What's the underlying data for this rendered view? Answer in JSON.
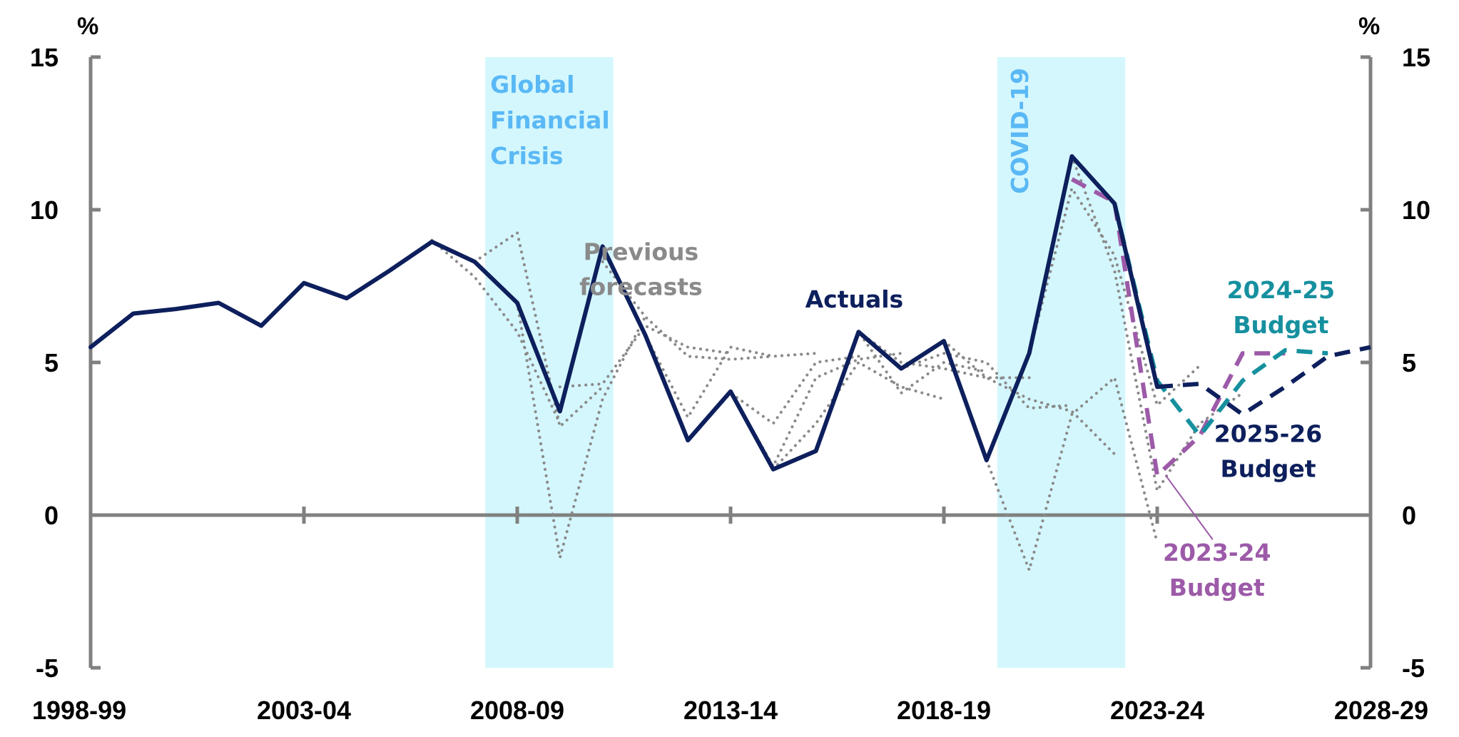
{
  "chart_data": {
    "type": "line",
    "left_unit": "%",
    "right_unit": "%",
    "ylim": [
      -5,
      15
    ],
    "yticks": [
      "15",
      "10",
      "5",
      "0",
      "-5"
    ],
    "xlim": [
      1998,
      2028
    ],
    "xticks": [
      {
        "label": "1998-99",
        "x": 1998
      },
      {
        "label": "2003-04",
        "x": 2003
      },
      {
        "label": "2008-09",
        "x": 2008
      },
      {
        "label": "2013-14",
        "x": 2013
      },
      {
        "label": "2018-19",
        "x": 2018
      },
      {
        "label": "2023-24",
        "x": 2023
      },
      {
        "label": "2028-29",
        "x": 2028
      }
    ],
    "shaded_periods": [
      {
        "label": "Global Financial Crisis",
        "lines": [
          "Global",
          "Financial",
          "Crisis"
        ],
        "x0": 2007.25,
        "x1": 2010.25,
        "color": "#d4f7fd",
        "label_color": "#5ab8f5"
      },
      {
        "label": "COVID-19",
        "lines": [
          "COVID-19"
        ],
        "x0": 2019.25,
        "x1": 2022.25,
        "color": "#d4f7fd",
        "label_color": "#5ab8f5",
        "vertical": true
      }
    ],
    "series": [
      {
        "name": "Actuals",
        "color": "#0d1f5c",
        "style": "solid",
        "x": [
          1998,
          1999,
          2000,
          2001,
          2002,
          2003,
          2004,
          2005,
          2006,
          2007,
          2008,
          2009,
          2010,
          2011,
          2012,
          2013,
          2014,
          2015,
          2016,
          2017,
          2018,
          2019,
          2020,
          2021,
          2022,
          2023
        ],
        "y": [
          5.5,
          6.6,
          6.75,
          6.95,
          6.2,
          7.6,
          7.1,
          8.0,
          8.95,
          8.3,
          6.95,
          3.4,
          8.8,
          5.9,
          2.45,
          4.05,
          1.5,
          2.1,
          6.0,
          4.8,
          5.7,
          1.8,
          5.3,
          11.75,
          10.2,
          4.2
        ]
      },
      {
        "name": "2023-24 Budget",
        "color": "#9c5aa8",
        "style": "dashed",
        "x": [
          2021,
          2022,
          2023,
          2024,
          2025,
          2026
        ],
        "y": [
          11.0,
          10.25,
          1.3,
          2.6,
          5.3,
          5.3
        ]
      },
      {
        "name": "2024-25 Budget",
        "color": "#16909f",
        "style": "dashed",
        "x": [
          2022,
          2023,
          2024,
          2025,
          2026,
          2027
        ],
        "y": [
          10.2,
          4.4,
          2.6,
          4.4,
          5.4,
          5.3
        ]
      },
      {
        "name": "2025-26 Budget",
        "color": "#0d1f5c",
        "style": "dashed",
        "x": [
          2023,
          2024,
          2025,
          2026,
          2027,
          2028
        ],
        "y": [
          4.2,
          4.3,
          3.3,
          4.2,
          5.2,
          5.5
        ]
      },
      {
        "name": "Previous forecasts",
        "color": "#8a8a8a",
        "style": "dotted",
        "lines": [
          {
            "x": [
              2006,
              2007,
              2008,
              2009
            ],
            "y": [
              9.0,
              7.8,
              6.0,
              3.0
            ]
          },
          {
            "x": [
              2007,
              2008,
              2009,
              2010
            ],
            "y": [
              8.3,
              9.25,
              2.9,
              4.2
            ]
          },
          {
            "x": [
              2008,
              2009,
              2010,
              2011
            ],
            "y": [
              6.95,
              -1.4,
              3.8,
              6.5
            ]
          },
          {
            "x": [
              2009,
              2010,
              2011,
              2012,
              2013
            ],
            "y": [
              4.2,
              4.3,
              6.2,
              5.5,
              5.3
            ]
          },
          {
            "x": [
              2010,
              2011,
              2012,
              2013,
              2014
            ],
            "y": [
              8.3,
              6.5,
              5.2,
              5.1,
              5.2
            ]
          },
          {
            "x": [
              2011,
              2012,
              2013,
              2014,
              2015
            ],
            "y": [
              5.9,
              3.2,
              5.5,
              5.2,
              5.3
            ]
          },
          {
            "x": [
              2012,
              2013,
              2014,
              2015,
              2016
            ],
            "y": [
              2.45,
              4.0,
              3.0,
              5.0,
              5.2
            ]
          },
          {
            "x": [
              2013,
              2014,
              2015,
              2016,
              2017
            ],
            "y": [
              4.05,
              1.6,
              4.5,
              5.1,
              5.3
            ]
          },
          {
            "x": [
              2014,
              2015,
              2016,
              2017,
              2018
            ],
            "y": [
              1.5,
              3.0,
              5.0,
              4.2,
              3.8
            ]
          },
          {
            "x": [
              2015,
              2016,
              2017,
              2018,
              2019
            ],
            "y": [
              2.1,
              6.0,
              4.0,
              5.0,
              4.7
            ]
          },
          {
            "x": [
              2016,
              2017,
              2018,
              2019,
              2020
            ],
            "y": [
              6.0,
              5.0,
              4.8,
              4.5,
              4.5
            ]
          },
          {
            "x": [
              2017,
              2018,
              2019,
              2020,
              2021
            ],
            "y": [
              4.8,
              5.3,
              5.0,
              3.5,
              3.6
            ]
          },
          {
            "x": [
              2018,
              2019,
              2020,
              2021,
              2022
            ],
            "y": [
              5.7,
              4.5,
              3.8,
              3.4,
              2.0
            ]
          },
          {
            "x": [
              2019,
              2020,
              2021,
              2022,
              2023
            ],
            "y": [
              1.8,
              -1.8,
              3.3,
              4.5,
              -0.9
            ]
          },
          {
            "x": [
              2020,
              2021,
              2022,
              2023,
              2024
            ],
            "y": [
              5.3,
              10.7,
              8.5,
              3.6,
              4.9
            ]
          },
          {
            "x": [
              2021,
              2022,
              2023,
              2024,
              2025
            ],
            "y": [
              11.75,
              8.0,
              0.8,
              3.0,
              4.0
            ]
          }
        ]
      }
    ],
    "annotations": [
      {
        "lines": [
          "Previous",
          "forecasts"
        ],
        "color": "#8a8a8a",
        "anchor_x": 2010.9,
        "anchor_y": 8.35
      },
      {
        "lines": [
          "Actuals"
        ],
        "color": "#0d1f5c",
        "anchor_x": 2015.9,
        "anchor_y": 6.8
      },
      {
        "lines": [
          "2024-25",
          "Budget"
        ],
        "color": "#16909f",
        "anchor_x": 2025.9,
        "anchor_y": 7.1
      },
      {
        "lines": [
          "2025-26",
          "Budget"
        ],
        "color": "#0d1f5c",
        "anchor_x": 2025.6,
        "anchor_y": 2.4
      },
      {
        "lines": [
          "2023-24",
          "Budget"
        ],
        "color": "#9c5aa8",
        "anchor_x": 2024.4,
        "anchor_y": -1.5
      }
    ]
  }
}
